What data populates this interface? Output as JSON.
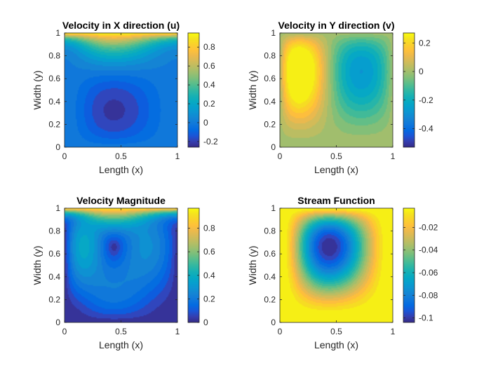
{
  "chart_data": [
    {
      "type": "heatmap",
      "field": "u",
      "title": "Velocity in X direction (u)",
      "xlabel": "Length (x)",
      "ylabel": "Width (y)",
      "xlim": [
        0,
        1
      ],
      "ylim": [
        0,
        1
      ],
      "xticks": [
        "0",
        "0.5",
        "1"
      ],
      "yticks": [
        "0",
        "0.2",
        "0.4",
        "0.6",
        "0.8",
        "1"
      ],
      "colorbar": {
        "ticks": [
          -0.2,
          0,
          0.2,
          0.4,
          0.6,
          0.8
        ],
        "tick_labels": [
          "-0.2",
          "0",
          "0.2",
          "0.4",
          "0.6",
          "0.8"
        ],
        "range": [
          -0.26,
          0.95
        ]
      },
      "colormap": "parula"
    },
    {
      "type": "heatmap",
      "field": "v",
      "title": "Velocity in Y direction (v)",
      "xlabel": "Length (x)",
      "ylabel": "Width (y)",
      "xlim": [
        0,
        1
      ],
      "ylim": [
        0,
        1
      ],
      "xticks": [
        "0",
        "0.5",
        "1"
      ],
      "yticks": [
        "0",
        "0.2",
        "0.4",
        "0.6",
        "0.8",
        "1"
      ],
      "colorbar": {
        "ticks": [
          -0.4,
          -0.2,
          0,
          0.2
        ],
        "tick_labels": [
          "-0.4",
          "-0.2",
          "0",
          "0.2"
        ],
        "range": [
          -0.53,
          0.27
        ]
      },
      "colormap": "parula"
    },
    {
      "type": "heatmap",
      "field": "speed",
      "title": "Velocity Magnitude",
      "xlabel": "Length (x)",
      "ylabel": "Width (y)",
      "xlim": [
        0,
        1
      ],
      "ylim": [
        0,
        1
      ],
      "xticks": [
        "0",
        "0.5",
        "1"
      ],
      "yticks": [
        "0",
        "0.2",
        "0.4",
        "0.6",
        "0.8",
        "1"
      ],
      "colorbar": {
        "ticks": [
          0,
          0.2,
          0.4,
          0.6,
          0.8
        ],
        "tick_labels": [
          "0",
          "0.2",
          "0.4",
          "0.6",
          "0.8"
        ],
        "range": [
          0,
          0.97
        ]
      },
      "colormap": "parula"
    },
    {
      "type": "heatmap",
      "field": "psi",
      "title": "Stream Function",
      "xlabel": "Length (x)",
      "ylabel": "Width (y)",
      "xlim": [
        0,
        1
      ],
      "ylim": [
        0,
        1
      ],
      "xticks": [
        "0",
        "0.5",
        "1"
      ],
      "yticks": [
        "0",
        "0.2",
        "0.4",
        "0.6",
        "0.8",
        "1"
      ],
      "colorbar": {
        "ticks": [
          -0.1,
          -0.08,
          -0.06,
          -0.04,
          -0.02
        ],
        "tick_labels": [
          "-0.1",
          "-0.08",
          "-0.06",
          "-0.04",
          "-0.02"
        ],
        "range": [
          -0.104,
          -0.003
        ]
      },
      "colormap": "parula"
    }
  ]
}
